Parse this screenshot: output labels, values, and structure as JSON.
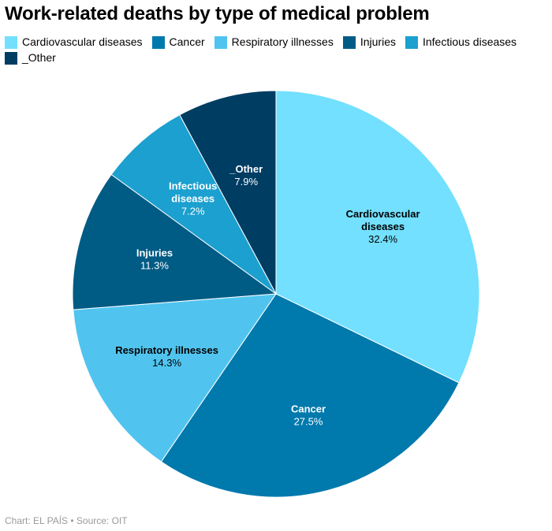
{
  "title": "Work-related deaths by type of medical problem",
  "footer": "Chart: EL PAÍS • Source: OIT",
  "chart_data": {
    "type": "pie",
    "title": "Work-related deaths by type of medical problem",
    "legend_position": "top",
    "slices": [
      {
        "name": "Cardiovascular diseases",
        "label_lines": [
          "Cardiovascular",
          "diseases"
        ],
        "value": 32.4,
        "display": "32.4%",
        "color": "#72e0fe",
        "label_color": "#000000"
      },
      {
        "name": "Cancer",
        "label_lines": [
          "Cancer"
        ],
        "value": 27.5,
        "display": "27.5%",
        "color": "#0079ad",
        "label_color": "#ffffff"
      },
      {
        "name": "Respiratory illnesses",
        "label_lines": [
          "Respiratory illnesses"
        ],
        "value": 14.3,
        "display": "14.3%",
        "color": "#50c4ef",
        "label_color": "#000000"
      },
      {
        "name": "Injuries",
        "label_lines": [
          "Injuries"
        ],
        "value": 11.3,
        "display": "11.3%",
        "color": "#005b85",
        "label_color": "#ffffff"
      },
      {
        "name": "Infectious diseases",
        "label_lines": [
          "Infectious",
          "diseases"
        ],
        "value": 7.2,
        "display": "7.2%",
        "color": "#1ba0cf",
        "label_color": "#ffffff"
      },
      {
        "name": "_Other",
        "label_lines": [
          "_Other"
        ],
        "value": 7.9,
        "display": "7.9%",
        "color": "#003d63",
        "label_color": "#ffffff"
      }
    ]
  }
}
